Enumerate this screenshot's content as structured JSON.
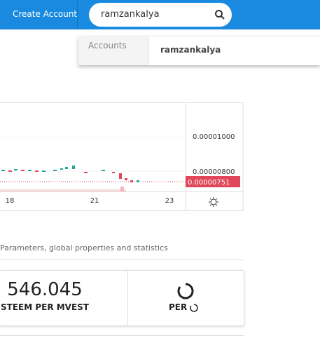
{
  "header": {
    "create_account": "Create Account",
    "search_query": "ramzankalya"
  },
  "dropdown": {
    "section": "Accounts",
    "result": "ramzankalya"
  },
  "chart": {
    "price_labels": [
      "0.00001000",
      "0.00000800"
    ],
    "current_price": "0.00000751",
    "date_labels": [
      "18",
      "21",
      "23"
    ]
  },
  "section": {
    "title": "Parameters, global properties and statistics"
  },
  "stats": {
    "value": "546.045",
    "label": "STEEM PER MVEST",
    "second_label": "PER"
  }
}
